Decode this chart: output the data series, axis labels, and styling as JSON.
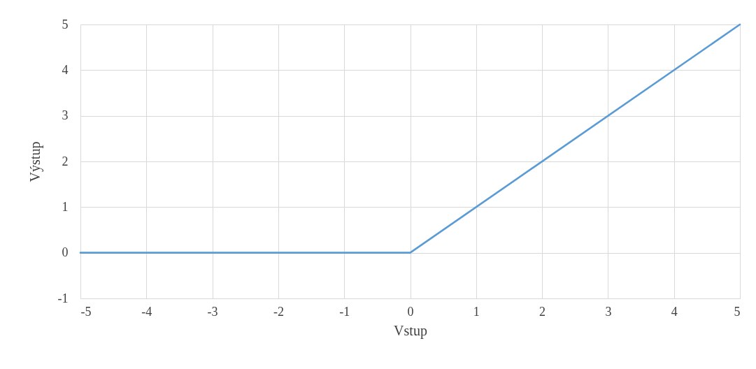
{
  "chart_data": {
    "type": "line",
    "xlabel": "Vstup",
    "ylabel": "Výstup",
    "x": [
      -5,
      0,
      5
    ],
    "series": [
      {
        "color": "#5b9bd5",
        "values": [
          0,
          0,
          5
        ]
      }
    ],
    "xlim": [
      -5,
      5
    ],
    "xticks": [
      -5,
      -4,
      -3,
      -2,
      -1,
      0,
      1,
      2,
      3,
      4,
      5
    ],
    "ylim": [
      -1,
      5
    ],
    "yticks": [
      -1,
      0,
      1,
      2,
      3,
      4,
      5
    ],
    "grid": true,
    "marker": "none",
    "line_style": "solid"
  }
}
